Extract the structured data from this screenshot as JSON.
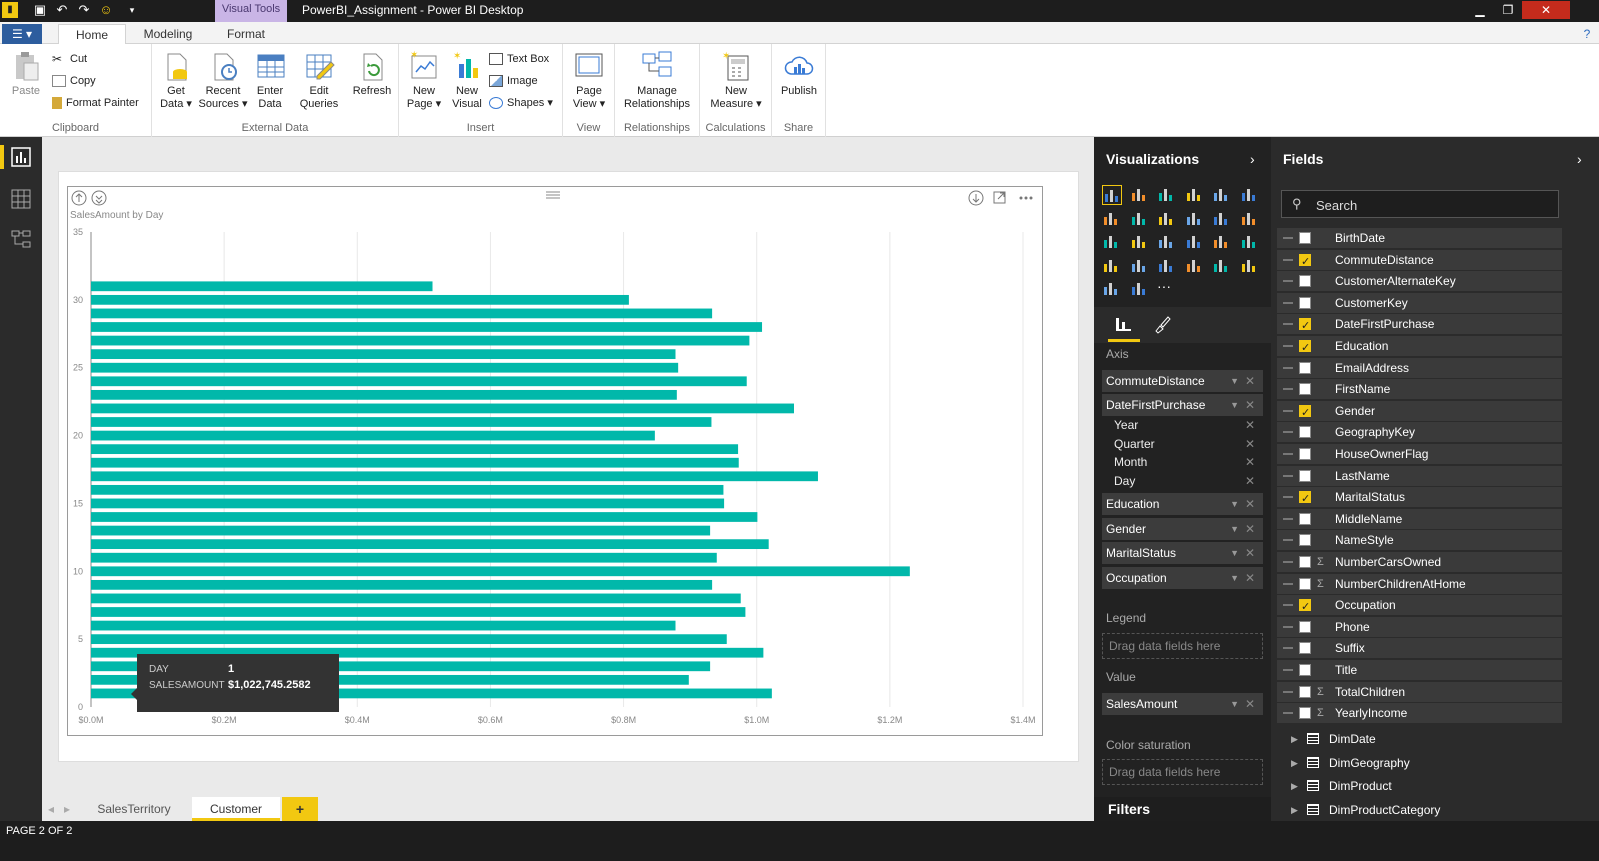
{
  "window": {
    "contextual_tab": "Visual Tools",
    "title": "PowerBI_Assignment - Power BI Desktop"
  },
  "ribbon_tabs": [
    "Home",
    "Modeling",
    "Format"
  ],
  "ribbon": {
    "clipboard": {
      "paste": "Paste",
      "cut": "Cut",
      "copy": "Copy",
      "format_painter": "Format Painter",
      "label": "Clipboard"
    },
    "external": {
      "get_data_1": "Get",
      "get_data_2": "Data",
      "recent_1": "Recent",
      "recent_2": "Sources",
      "enter_1": "Enter",
      "enter_2": "Data",
      "edit_1": "Edit",
      "edit_2": "Queries",
      "refresh": "Refresh",
      "label": "External Data"
    },
    "insert": {
      "new_page_1": "New",
      "new_page_2": "Page",
      "new_visual_1": "New",
      "new_visual_2": "Visual",
      "text_box": "Text Box",
      "image": "Image",
      "shapes": "Shapes",
      "label": "Insert"
    },
    "view": {
      "page_view_1": "Page",
      "page_view_2": "View",
      "label": "View"
    },
    "relationships": {
      "manage_1": "Manage",
      "manage_2": "Relationships",
      "label": "Relationships"
    },
    "calculations": {
      "measure_1": "New",
      "measure_2": "Measure",
      "label": "Calculations"
    },
    "share": {
      "publish": "Publish",
      "label": "Share"
    }
  },
  "chart_data": {
    "type": "bar",
    "orientation": "horizontal",
    "title": "SalesAmount by Day",
    "categories": [
      1,
      2,
      3,
      4,
      5,
      6,
      7,
      8,
      9,
      10,
      11,
      12,
      13,
      14,
      15,
      16,
      17,
      18,
      19,
      20,
      21,
      22,
      23,
      24,
      25,
      26,
      27,
      28,
      29,
      30,
      31
    ],
    "values": [
      1022745.26,
      898000,
      930000,
      1010000,
      955000,
      878000,
      983000,
      976000,
      933000,
      1230000,
      940000,
      1018000,
      930000,
      1001000,
      951000,
      950000,
      1092000,
      973000,
      972000,
      847000,
      932000,
      1056000,
      880000,
      985000,
      882000,
      878000,
      989000,
      1008000,
      933000,
      808000,
      513000
    ],
    "xlim": [
      0,
      1400000
    ],
    "ylim": [
      0,
      35
    ],
    "xticks": [
      "$0.0M",
      "$0.2M",
      "$0.4M",
      "$0.6M",
      "$0.8M",
      "$1.0M",
      "$1.2M",
      "$1.4M"
    ],
    "yticks": [
      "0",
      "5",
      "10",
      "15",
      "20",
      "25",
      "30",
      "35"
    ],
    "color": "#01b8aa",
    "grid": true
  },
  "tooltip": {
    "day_label": "DAY",
    "day_value": "1",
    "amount_label": "SALESAMOUNT",
    "amount_value": "$1,022,745.2582"
  },
  "page_tabs": [
    "SalesTerritory",
    "Customer"
  ],
  "add_page": "+",
  "status": "PAGE 2 OF 2",
  "visualizations": {
    "title": "Visualizations",
    "axis_label": "Axis",
    "axis_fields": [
      "CommuteDistance",
      "DateFirstPurchase"
    ],
    "date_hierarchy": [
      "Year",
      "Quarter",
      "Month",
      "Day"
    ],
    "axis_fields_2": [
      "Education",
      "Gender",
      "MaritalStatus",
      "Occupation"
    ],
    "legend_label": "Legend",
    "legend_drop": "Drag data fields here",
    "value_label": "Value",
    "value_field": "SalesAmount",
    "saturation_label": "Color saturation",
    "saturation_drop": "Drag data fields here",
    "filters_label": "Filters"
  },
  "fields": {
    "title": "Fields",
    "search_placeholder": "Search",
    "items": [
      {
        "name": "BirthDate",
        "checked": false,
        "sigma": false
      },
      {
        "name": "CommuteDistance",
        "checked": true,
        "sigma": false
      },
      {
        "name": "CustomerAlternateKey",
        "checked": false,
        "sigma": false
      },
      {
        "name": "CustomerKey",
        "checked": false,
        "sigma": false
      },
      {
        "name": "DateFirstPurchase",
        "checked": true,
        "sigma": false
      },
      {
        "name": "Education",
        "checked": true,
        "sigma": false
      },
      {
        "name": "EmailAddress",
        "checked": false,
        "sigma": false
      },
      {
        "name": "FirstName",
        "checked": false,
        "sigma": false
      },
      {
        "name": "Gender",
        "checked": true,
        "sigma": false
      },
      {
        "name": "GeographyKey",
        "checked": false,
        "sigma": false
      },
      {
        "name": "HouseOwnerFlag",
        "checked": false,
        "sigma": false
      },
      {
        "name": "LastName",
        "checked": false,
        "sigma": false
      },
      {
        "name": "MaritalStatus",
        "checked": true,
        "sigma": false
      },
      {
        "name": "MiddleName",
        "checked": false,
        "sigma": false
      },
      {
        "name": "NameStyle",
        "checked": false,
        "sigma": false
      },
      {
        "name": "NumberCarsOwned",
        "checked": false,
        "sigma": true
      },
      {
        "name": "NumberChildrenAtHome",
        "checked": false,
        "sigma": true
      },
      {
        "name": "Occupation",
        "checked": true,
        "sigma": false
      },
      {
        "name": "Phone",
        "checked": false,
        "sigma": false
      },
      {
        "name": "Suffix",
        "checked": false,
        "sigma": false
      },
      {
        "name": "Title",
        "checked": false,
        "sigma": false
      },
      {
        "name": "TotalChildren",
        "checked": false,
        "sigma": true
      },
      {
        "name": "YearlyIncome",
        "checked": false,
        "sigma": true
      }
    ],
    "tables": [
      "DimDate",
      "DimGeography",
      "DimProduct",
      "DimProductCategory"
    ]
  }
}
